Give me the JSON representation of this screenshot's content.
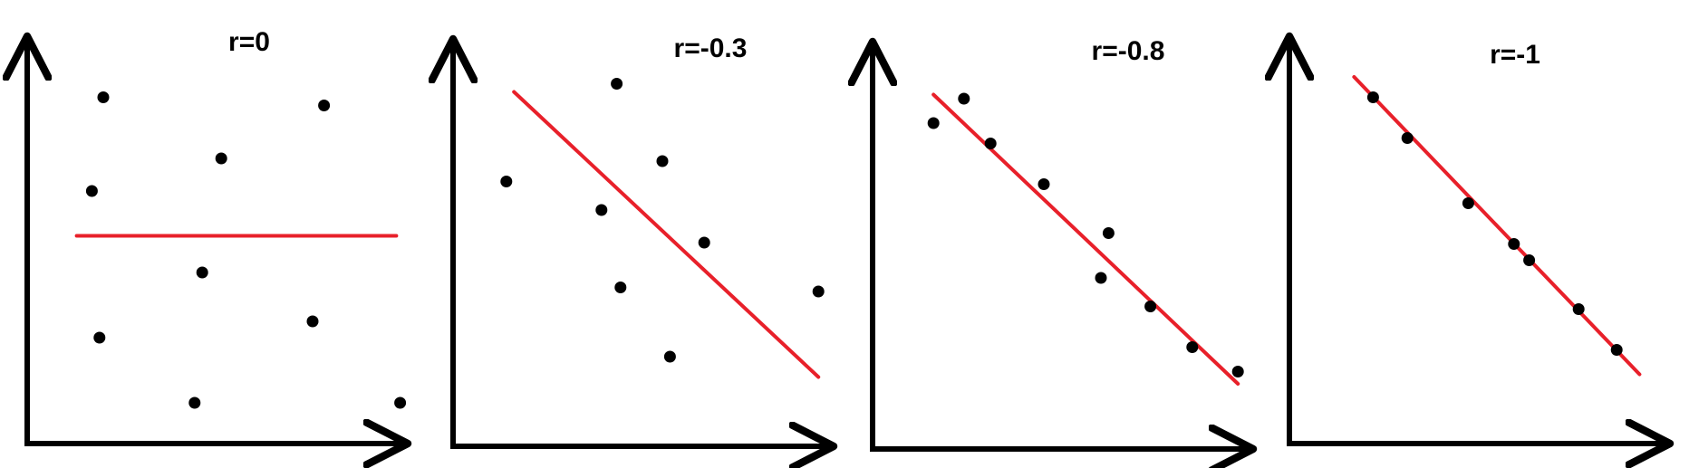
{
  "colors": {
    "axis": "#000000",
    "point": "#000000",
    "fit_line": "#e8202a",
    "background": "#ffffff"
  },
  "chart_data": [
    {
      "type": "scatter",
      "title": "r=0",
      "xlim": [
        0,
        10
      ],
      "ylim": [
        0,
        10
      ],
      "grid": false,
      "axis_ticks": false,
      "points": [
        {
          "x": 2.0,
          "y": 8.5
        },
        {
          "x": 7.8,
          "y": 8.3
        },
        {
          "x": 5.1,
          "y": 7.0
        },
        {
          "x": 1.7,
          "y": 6.2
        },
        {
          "x": 4.6,
          "y": 4.2
        },
        {
          "x": 1.9,
          "y": 2.6
        },
        {
          "x": 7.5,
          "y": 3.0
        },
        {
          "x": 4.4,
          "y": 1.0
        },
        {
          "x": 9.8,
          "y": 1.0
        }
      ],
      "fit_line": {
        "x": [
          1.3,
          9.7
        ],
        "y": [
          5.1,
          5.1
        ]
      }
    },
    {
      "type": "scatter",
      "title": "r=-0.3",
      "xlim": [
        0,
        10
      ],
      "ylim": [
        0,
        10
      ],
      "grid": false,
      "axis_ticks": false,
      "points": [
        {
          "x": 4.3,
          "y": 8.9
        },
        {
          "x": 5.5,
          "y": 7.0
        },
        {
          "x": 1.4,
          "y": 6.5
        },
        {
          "x": 3.9,
          "y": 5.8
        },
        {
          "x": 6.6,
          "y": 5.0
        },
        {
          "x": 4.4,
          "y": 3.9
        },
        {
          "x": 9.6,
          "y": 3.8
        },
        {
          "x": 5.7,
          "y": 2.2
        }
      ],
      "fit_line": {
        "x": [
          1.6,
          9.6
        ],
        "y": [
          8.7,
          1.7
        ]
      }
    },
    {
      "type": "scatter",
      "title": "r=-0.8",
      "xlim": [
        0,
        10
      ],
      "ylim": [
        0,
        10
      ],
      "grid": false,
      "axis_ticks": false,
      "points": [
        {
          "x": 1.6,
          "y": 8.0
        },
        {
          "x": 2.4,
          "y": 8.6
        },
        {
          "x": 3.1,
          "y": 7.5
        },
        {
          "x": 4.5,
          "y": 6.5
        },
        {
          "x": 6.2,
          "y": 5.3
        },
        {
          "x": 6.0,
          "y": 4.2
        },
        {
          "x": 7.3,
          "y": 3.5
        },
        {
          "x": 8.4,
          "y": 2.5
        },
        {
          "x": 9.6,
          "y": 1.9
        }
      ],
      "fit_line": {
        "x": [
          1.6,
          9.6
        ],
        "y": [
          8.7,
          1.6
        ]
      }
    },
    {
      "type": "scatter",
      "title": "r=-1",
      "xlim": [
        0,
        10
      ],
      "ylim": [
        0,
        10
      ],
      "grid": false,
      "axis_ticks": false,
      "points": [
        {
          "x": 2.2,
          "y": 8.5
        },
        {
          "x": 3.1,
          "y": 7.5
        },
        {
          "x": 4.7,
          "y": 5.9
        },
        {
          "x": 5.9,
          "y": 4.9
        },
        {
          "x": 6.3,
          "y": 4.5
        },
        {
          "x": 7.6,
          "y": 3.3
        },
        {
          "x": 8.6,
          "y": 2.3
        }
      ],
      "fit_line": {
        "x": [
          1.7,
          9.2
        ],
        "y": [
          9.0,
          1.7
        ]
      }
    }
  ]
}
